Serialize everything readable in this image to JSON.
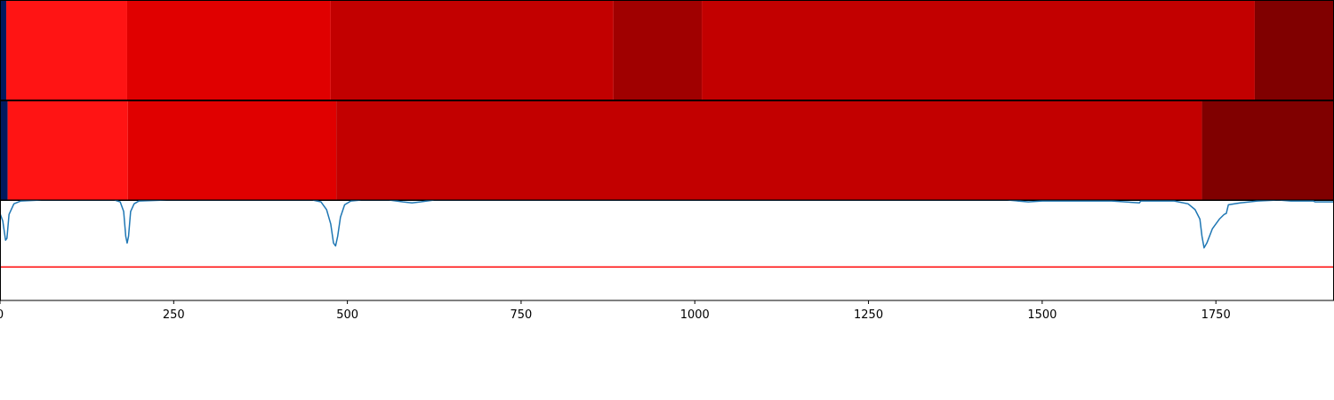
{
  "chart_data": [
    {
      "type": "heatmap",
      "name": "segmentation-row-1",
      "segments": [
        {
          "start": 0,
          "end": 9,
          "color": "#001a5e"
        },
        {
          "start": 9,
          "end": 183,
          "color": "#ff1414"
        },
        {
          "start": 183,
          "end": 476,
          "color": "#e00000"
        },
        {
          "start": 476,
          "end": 883,
          "color": "#c20000"
        },
        {
          "start": 883,
          "end": 1010,
          "color": "#a00000"
        },
        {
          "start": 1010,
          "end": 1806,
          "color": "#c20000"
        },
        {
          "start": 1806,
          "end": 1920,
          "color": "#800000"
        }
      ]
    },
    {
      "type": "heatmap",
      "name": "segmentation-row-2",
      "segments": [
        {
          "start": 0,
          "end": 11,
          "color": "#001a5e"
        },
        {
          "start": 11,
          "end": 184,
          "color": "#ff1414"
        },
        {
          "start": 184,
          "end": 484,
          "color": "#e00000"
        },
        {
          "start": 484,
          "end": 1730,
          "color": "#c20000"
        },
        {
          "start": 1730,
          "end": 1920,
          "color": "#800000"
        }
      ]
    },
    {
      "type": "line",
      "xlim": [
        0,
        1920
      ],
      "ylim": [
        -0.05,
        1.0
      ],
      "xticks": [
        0,
        250,
        500,
        750,
        1000,
        1250,
        1500,
        1750
      ],
      "xtick_labels": [
        "0",
        "250",
        "500",
        "750",
        "1000",
        "1250",
        "1500",
        "1750"
      ],
      "threshold": {
        "value": 0.3,
        "color": "#ff0000"
      },
      "series": [
        {
          "color": "#1f77b4",
          "points": [
            [
              0,
              0.86
            ],
            [
              4,
              0.78
            ],
            [
              8,
              0.58
            ],
            [
              10,
              0.6
            ],
            [
              13,
              0.85
            ],
            [
              20,
              0.96
            ],
            [
              30,
              0.99
            ],
            [
              60,
              1.0
            ],
            [
              165,
              1.0
            ],
            [
              173,
              0.98
            ],
            [
              178,
              0.88
            ],
            [
              181,
              0.62
            ],
            [
              183,
              0.55
            ],
            [
              185,
              0.62
            ],
            [
              188,
              0.88
            ],
            [
              193,
              0.96
            ],
            [
              200,
              0.99
            ],
            [
              240,
              1.0
            ],
            [
              450,
              1.0
            ],
            [
              462,
              0.98
            ],
            [
              470,
              0.9
            ],
            [
              476,
              0.75
            ],
            [
              480,
              0.55
            ],
            [
              483,
              0.52
            ],
            [
              486,
              0.62
            ],
            [
              490,
              0.82
            ],
            [
              496,
              0.95
            ],
            [
              505,
              0.99
            ],
            [
              520,
              1.0
            ],
            [
              560,
              1.0
            ],
            [
              580,
              0.98
            ],
            [
              593,
              0.97
            ],
            [
              605,
              0.98
            ],
            [
              625,
              1.0
            ],
            [
              1450,
              1.0
            ],
            [
              1480,
              0.98
            ],
            [
              1500,
              0.99
            ],
            [
              1600,
              0.99
            ],
            [
              1640,
              0.97
            ],
            [
              1642,
              0.99
            ],
            [
              1690,
              0.99
            ],
            [
              1710,
              0.96
            ],
            [
              1720,
              0.9
            ],
            [
              1727,
              0.8
            ],
            [
              1730,
              0.62
            ],
            [
              1733,
              0.5
            ],
            [
              1737,
              0.55
            ],
            [
              1745,
              0.7
            ],
            [
              1755,
              0.8
            ],
            [
              1762,
              0.85
            ],
            [
              1765,
              0.86
            ],
            [
              1768,
              0.95
            ],
            [
              1785,
              0.97
            ],
            [
              1810,
              0.99
            ],
            [
              1840,
              1.0
            ],
            [
              1858,
              0.99
            ],
            [
              1890,
              0.99
            ],
            [
              1893,
              0.98
            ],
            [
              1920,
              0.98
            ]
          ]
        }
      ]
    }
  ]
}
